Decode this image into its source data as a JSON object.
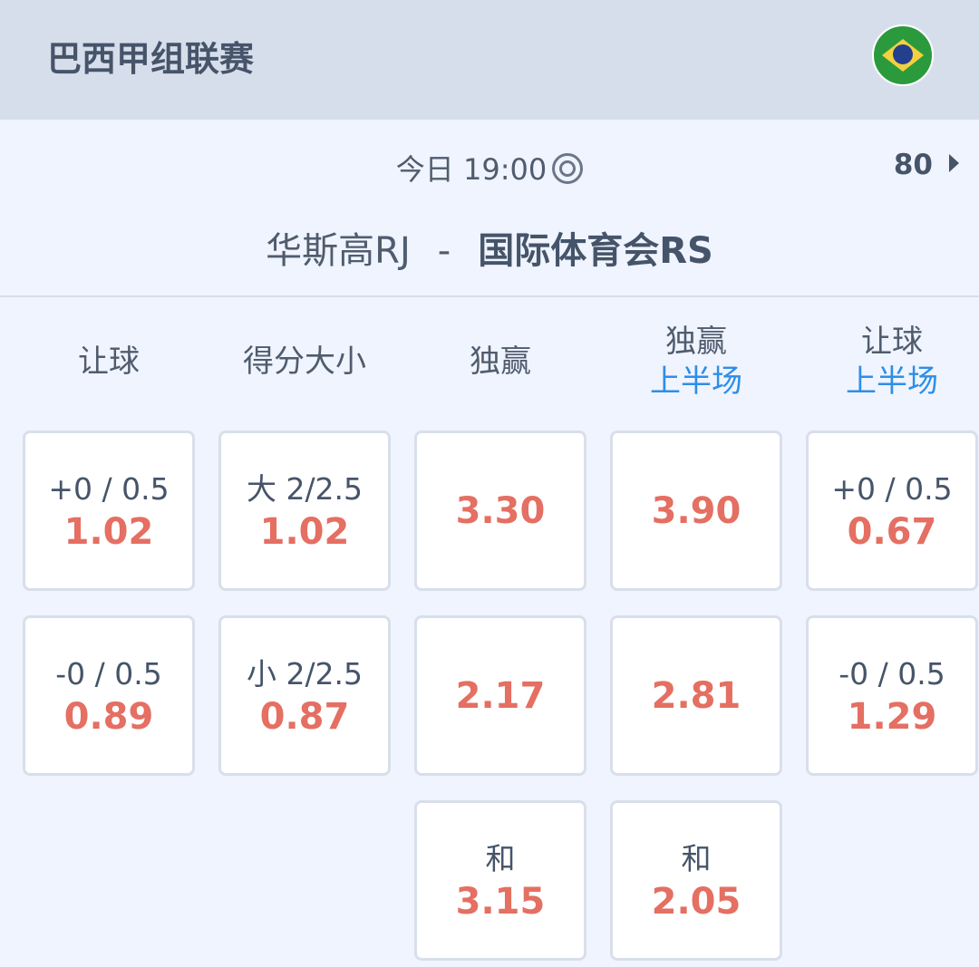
{
  "header": {
    "league": "巴西甲组联赛",
    "flag_icon": "brazil-flag"
  },
  "match": {
    "time": "今日 19:00",
    "more_count": "80",
    "home": "华斯高RJ",
    "separator": "-",
    "away": "国际体育会RS"
  },
  "columns": [
    {
      "title": "让球",
      "sub": ""
    },
    {
      "title": "得分大小",
      "sub": ""
    },
    {
      "title": "独赢",
      "sub": ""
    },
    {
      "title": "独赢",
      "sub": "上半场"
    },
    {
      "title": "让球",
      "sub": "上半场"
    }
  ],
  "cells": [
    [
      {
        "label": "+0 / 0.5",
        "odd": "1.02"
      },
      {
        "label": "-0 / 0.5",
        "odd": "0.89"
      }
    ],
    [
      {
        "label": "大 2/2.5",
        "odd": "1.02"
      },
      {
        "label": "小 2/2.5",
        "odd": "0.87"
      }
    ],
    [
      {
        "label": "",
        "odd": "3.30"
      },
      {
        "label": "",
        "odd": "2.17"
      },
      {
        "label": "和",
        "odd": "3.15"
      }
    ],
    [
      {
        "label": "",
        "odd": "3.90"
      },
      {
        "label": "",
        "odd": "2.81"
      },
      {
        "label": "和",
        "odd": "2.05"
      }
    ],
    [
      {
        "label": "+0 / 0.5",
        "odd": "0.67"
      },
      {
        "label": "-0 / 0.5",
        "odd": "1.29"
      }
    ]
  ],
  "colors": {
    "odd": "#e46f62",
    "accent": "#2e8ee8",
    "header_bg": "#d7deeb",
    "page_bg": "#eff4fe"
  }
}
